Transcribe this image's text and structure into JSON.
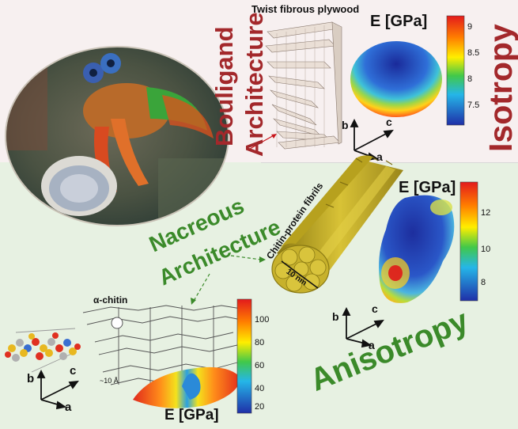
{
  "top": {
    "title_left": "Bouligand",
    "title_left_2": "Architecture",
    "plywood_label": "Twist fibrous plywood",
    "modulus_label": "E [GPa]",
    "colorbar_ticks": [
      "9",
      "8.5",
      "8",
      "7.5"
    ],
    "axes": {
      "a": "a",
      "b": "b",
      "c": "c"
    },
    "property": "Isotropy"
  },
  "bottom": {
    "title_1": "Nacreous",
    "title_2": "Architecture",
    "fibril_label": "Chitin-protein fibrils",
    "fibril_size": "10 nm",
    "modulus_label": "E [GPa]",
    "colorbar_ticks": [
      "12",
      "10",
      "8"
    ],
    "axes": {
      "a": "a",
      "b": "b",
      "c": "c"
    },
    "property": "Anisotropy",
    "chitin_label": "α-chitin",
    "chitin_spacing": "~10 Å",
    "molecule_axes": {
      "a": "a",
      "b": "b",
      "c": "c"
    },
    "colorbar2_ticks": [
      "100",
      "80",
      "60",
      "40",
      "20"
    ],
    "modulus_label_2": "E [GPa]"
  },
  "colors": {
    "bouligand_text": "#a3282b",
    "nacre_text": "#3b8a2a",
    "bottom_bg": "#e6f1e1",
    "top_bg": "#f6eeee",
    "fibril": "#c9b22f"
  }
}
